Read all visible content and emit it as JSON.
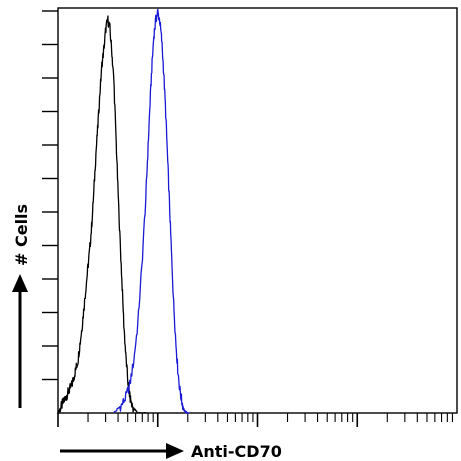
{
  "chart_data": {
    "type": "line",
    "title": "",
    "xlabel": "Anti-CD70",
    "ylabel": "# Cells",
    "x_scale": "log",
    "x_decades": 4,
    "grid": false,
    "legend": "none",
    "series": [
      {
        "color": "#000000",
        "points": [
          [
            0.0,
            0.0
          ],
          [
            0.02,
            0.01
          ],
          [
            0.04,
            0.02
          ],
          [
            0.06,
            0.03
          ],
          [
            0.08,
            0.04
          ],
          [
            0.1,
            0.05
          ],
          [
            0.12,
            0.06
          ],
          [
            0.14,
            0.07
          ],
          [
            0.16,
            0.09
          ],
          [
            0.18,
            0.11
          ],
          [
            0.2,
            0.13
          ],
          [
            0.22,
            0.17
          ],
          [
            0.24,
            0.21
          ],
          [
            0.26,
            0.26
          ],
          [
            0.28,
            0.31
          ],
          [
            0.3,
            0.36
          ],
          [
            0.32,
            0.41
          ],
          [
            0.34,
            0.47
          ],
          [
            0.36,
            0.55
          ],
          [
            0.38,
            0.64
          ],
          [
            0.4,
            0.71
          ],
          [
            0.42,
            0.79
          ],
          [
            0.44,
            0.86
          ],
          [
            0.46,
            0.9
          ],
          [
            0.48,
            0.95
          ],
          [
            0.5,
            0.97
          ],
          [
            0.52,
            0.95
          ],
          [
            0.54,
            0.89
          ],
          [
            0.56,
            0.82
          ],
          [
            0.58,
            0.69
          ],
          [
            0.6,
            0.56
          ],
          [
            0.62,
            0.44
          ],
          [
            0.64,
            0.33
          ],
          [
            0.66,
            0.22
          ],
          [
            0.68,
            0.14
          ],
          [
            0.7,
            0.08
          ],
          [
            0.72,
            0.04
          ],
          [
            0.74,
            0.02
          ],
          [
            0.76,
            0.01
          ],
          [
            0.8,
            0.0
          ],
          [
            0.9,
            0.0
          ]
        ]
      },
      {
        "color": "#1a1ad6",
        "points": [
          [
            0.56,
            0.0
          ],
          [
            0.6,
            0.01
          ],
          [
            0.64,
            0.02
          ],
          [
            0.68,
            0.04
          ],
          [
            0.72,
            0.07
          ],
          [
            0.76,
            0.13
          ],
          [
            0.8,
            0.22
          ],
          [
            0.84,
            0.36
          ],
          [
            0.88,
            0.53
          ],
          [
            0.9,
            0.64
          ],
          [
            0.92,
            0.75
          ],
          [
            0.94,
            0.85
          ],
          [
            0.96,
            0.93
          ],
          [
            0.98,
            0.97
          ],
          [
            1.0,
            0.99
          ],
          [
            1.02,
            0.97
          ],
          [
            1.04,
            0.92
          ],
          [
            1.06,
            0.84
          ],
          [
            1.08,
            0.74
          ],
          [
            1.1,
            0.62
          ],
          [
            1.12,
            0.5
          ],
          [
            1.14,
            0.38
          ],
          [
            1.16,
            0.27
          ],
          [
            1.18,
            0.18
          ],
          [
            1.2,
            0.11
          ],
          [
            1.22,
            0.06
          ],
          [
            1.24,
            0.03
          ],
          [
            1.26,
            0.01
          ],
          [
            1.28,
            0.0
          ],
          [
            1.32,
            0.0
          ]
        ]
      }
    ]
  }
}
